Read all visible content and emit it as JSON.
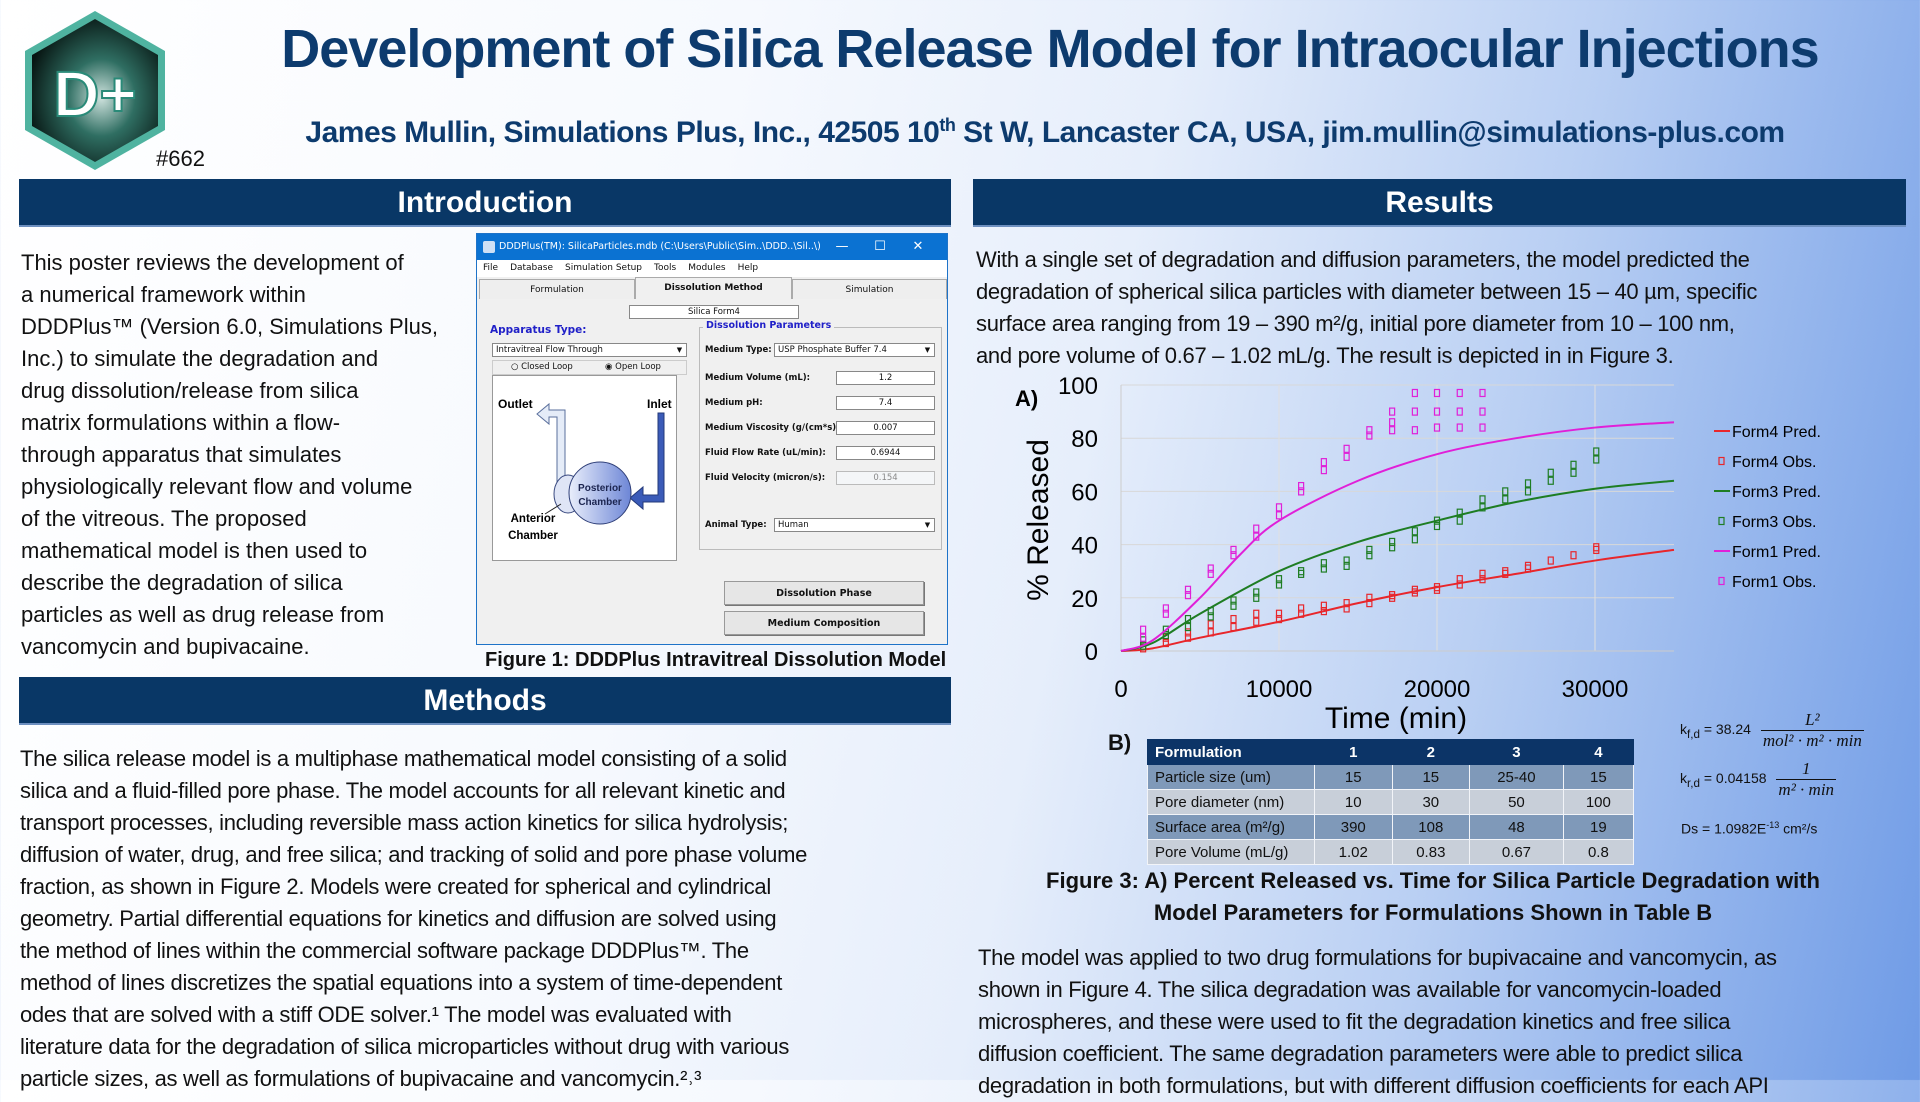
{
  "header": {
    "title": "Development of Silica Release Model for Intraocular Injections",
    "author_pre": "James Mullin, Simulations Plus, Inc., 42505 10",
    "author_sup": "th",
    "author_post": " St W, Lancaster CA, USA, jim.mullin@simulations-plus.com",
    "poster_number": "#662",
    "logo_text": "D+"
  },
  "introduction": {
    "heading": "Introduction",
    "lines": [
      "This poster reviews the development of",
      "a numerical framework within",
      "DDDPlus™ (Version 6.0, Simulations Plus,",
      "Inc.) to simulate the degradation and",
      "drug dissolution/release from silica",
      "matrix formulations within a flow-",
      "through apparatus that simulates",
      "physiologically relevant flow and volume",
      "of the vitreous.  The proposed",
      "mathematical model is then used to",
      "describe the degradation of silica",
      "particles as well as drug release from",
      "vancomycin and bupivacaine."
    ],
    "figure_caption": "Figure 1:  DDDPlus Intravitreal Dissolution Model"
  },
  "dialog": {
    "title": "DDDPlus(TM): SilicaParticles.mdb (C:\\Users\\Public\\Sim..\\DDD..\\Sil..\\)",
    "window_controls": [
      "—",
      "☐",
      "✕"
    ],
    "menu": [
      "File",
      "Database",
      "Simulation Setup",
      "Tools",
      "Modules",
      "Help"
    ],
    "tabs": [
      "Formulation",
      "Dissolution Method",
      "Simulation"
    ],
    "active_tab": "Dissolution Method",
    "formulation_name": "Silica Form4",
    "apparatus_label": "Apparatus Type:",
    "apparatus_value": "Intravitreal Flow Through",
    "radio_closed": "Closed Loop",
    "radio_open": "Open Loop",
    "radio_selected": "Open Loop",
    "diagram": {
      "outlet": "Outlet",
      "inlet": "Inlet",
      "posterior1": "Posterior",
      "posterior2": "Chamber",
      "anterior1": "Anterior",
      "anterior2": "Chamber"
    },
    "params_title": "Dissolution Parameters",
    "medium_type_label": "Medium Type:",
    "medium_type_value": "USP Phosphate Buffer 7.4",
    "medium_volume_label": "Medium Volume (mL):",
    "medium_volume_value": "1.2",
    "medium_ph_label": "Medium pH:",
    "medium_ph_value": "7.4",
    "viscosity_label": "Medium Viscosity (g/(cm*s)):",
    "viscosity_value": "0.007",
    "flow_rate_label": "Fluid Flow Rate (uL/min):",
    "flow_rate_value": "0.6944",
    "velocity_label": "Fluid Velocity (micron/s):",
    "velocity_value": "0.154",
    "animal_label": "Animal Type:",
    "animal_value": "Human",
    "btn_dissolution_phase": "Dissolution Phase",
    "btn_medium_composition": "Medium Composition"
  },
  "methods": {
    "heading": "Methods",
    "lines": [
      "The silica release model is a multiphase mathematical model consisting of a solid",
      "silica and a fluid-filled pore phase.  The model accounts for all relevant kinetic and",
      "transport processes, including reversible mass action kinetics for silica hydrolysis;",
      "diffusion of water, drug, and free silica; and tracking of solid and pore phase volume",
      "fraction, as shown in Figure 2.  Models were created for spherical and cylindrical",
      "geometry.  Partial differential equations for kinetics and diffusion are solved using",
      "the method of lines within the commercial software package DDDPlus™.  The",
      "method of lines discretizes the spatial equations into a system of time-dependent",
      "odes that are solved with a stiff ODE solver.¹  The model was evaluated with",
      "literature data for the degradation of silica microparticles without drug with various",
      "particle sizes, as well as formulations of bupivacaine and vancomycin.²˒³"
    ]
  },
  "results": {
    "heading": "Results",
    "lines": [
      "With a single set of degradation and diffusion parameters, the model predicted the",
      "degradation of spherical silica particles with diameter between 15 – 40 µm, specific",
      "surface area ranging from 19 – 390 m²/g, initial pore diameter from 10 –  100 nm,",
      "and pore volume of 0.67 – 1.02 mL/g.  The result is depicted in in Figure 3."
    ],
    "panel_a": "A)",
    "panel_b": "B)",
    "figure_caption_1": "Figure 3:  A) Percent Released vs. Time for Silica Particle Degradation with",
    "figure_caption_2": "Model Parameters for Formulations Shown in Table B",
    "lines2": [
      "The model was applied to two drug formulations for bupivacaine and vancomycin, as",
      "shown in Figure 4.  The silica degradation was available for vancomycin-loaded",
      "microspheres, and these were used to fit the degradation kinetics and free silica",
      "diffusion coefficient.  The same degradation parameters were able to predict silica",
      "degradation in both formulations, but with different diffusion coefficients for each API"
    ],
    "table": {
      "header": [
        "Formulation",
        "1",
        "2",
        "3",
        "4"
      ],
      "rows": [
        [
          "Particle size (um)",
          "15",
          "15",
          "25-40",
          "15"
        ],
        [
          "Pore diameter (nm)",
          "10",
          "30",
          "50",
          "100"
        ],
        [
          "Surface area (m²/g)",
          "390",
          "108",
          "48",
          "19"
        ],
        [
          "Pore Volume (mL/g)",
          "1.02",
          "0.83",
          "0.67",
          "0.8"
        ]
      ]
    },
    "equations": {
      "kfd_label": "k",
      "kfd_sub": "f,d",
      "kfd_value": "= 38.24",
      "kfd_num": "L²",
      "kfd_den": "mol² · m² · min",
      "krd_label": "k",
      "krd_sub": "r,d",
      "krd_value": "= 0.04158",
      "krd_num": "1",
      "krd_den": "m² · min",
      "ds_pre": "Ds = 1.0982E",
      "ds_exp": "-13",
      "ds_post": " cm²/s"
    }
  },
  "chart_data": {
    "type": "scatter",
    "xlabel": "Time (min)",
    "ylabel": "% Released",
    "xlim": [
      0,
      35000
    ],
    "ylim": [
      0,
      100
    ],
    "xticks": [
      0,
      10000,
      20000,
      30000
    ],
    "yticks": [
      0,
      20,
      40,
      60,
      80,
      100
    ],
    "grid": true,
    "legend_position": "right",
    "series": [
      {
        "name": "Form4 Pred.",
        "kind": "line",
        "color": "#e8262b",
        "points": [
          [
            0,
            0
          ],
          [
            2000,
            1
          ],
          [
            5000,
            5
          ],
          [
            10000,
            11
          ],
          [
            15000,
            18
          ],
          [
            20000,
            24
          ],
          [
            25000,
            29
          ],
          [
            30000,
            34
          ],
          [
            35000,
            38
          ]
        ]
      },
      {
        "name": "Form4 Obs.",
        "kind": "marker",
        "color": "#e8262b",
        "points": [
          [
            1400,
            1
          ],
          [
            1400,
            2
          ],
          [
            2840,
            3
          ],
          [
            2840,
            5
          ],
          [
            4240,
            5
          ],
          [
            4240,
            7
          ],
          [
            5680,
            7
          ],
          [
            5680,
            10
          ],
          [
            7120,
            9
          ],
          [
            7120,
            12
          ],
          [
            8560,
            11
          ],
          [
            8560,
            14
          ],
          [
            10000,
            12
          ],
          [
            10000,
            14
          ],
          [
            11400,
            14
          ],
          [
            11400,
            16
          ],
          [
            12840,
            15
          ],
          [
            12840,
            17
          ],
          [
            14280,
            16
          ],
          [
            14280,
            18
          ],
          [
            15720,
            18
          ],
          [
            15720,
            20
          ],
          [
            17160,
            20
          ],
          [
            17160,
            21
          ],
          [
            18600,
            22
          ],
          [
            18600,
            23
          ],
          [
            20000,
            23
          ],
          [
            20000,
            24
          ],
          [
            21440,
            25
          ],
          [
            21440,
            27
          ],
          [
            22880,
            27
          ],
          [
            22880,
            29
          ],
          [
            24320,
            29
          ],
          [
            24320,
            30
          ],
          [
            25760,
            31
          ],
          [
            25760,
            32
          ],
          [
            27200,
            34
          ],
          [
            28640,
            36
          ],
          [
            30080,
            38
          ],
          [
            30080,
            39
          ]
        ]
      },
      {
        "name": "Form3 Pred.",
        "kind": "line",
        "color": "#1e7d23",
        "points": [
          [
            0,
            0
          ],
          [
            2000,
            3
          ],
          [
            5000,
            14
          ],
          [
            10000,
            30
          ],
          [
            15000,
            41
          ],
          [
            20000,
            49
          ],
          [
            25000,
            56
          ],
          [
            30000,
            61
          ],
          [
            35000,
            64
          ]
        ]
      },
      {
        "name": "Form3 Obs.",
        "kind": "marker",
        "color": "#1e7d23",
        "points": [
          [
            1400,
            2
          ],
          [
            1400,
            4
          ],
          [
            2840,
            6
          ],
          [
            2840,
            8
          ],
          [
            4240,
            9
          ],
          [
            4240,
            12
          ],
          [
            5680,
            13
          ],
          [
            5680,
            15
          ],
          [
            7120,
            17
          ],
          [
            7120,
            19
          ],
          [
            8560,
            20
          ],
          [
            8560,
            22
          ],
          [
            10000,
            25
          ],
          [
            10000,
            27
          ],
          [
            11400,
            29
          ],
          [
            11400,
            30
          ],
          [
            12840,
            31
          ],
          [
            12840,
            33
          ],
          [
            14280,
            32
          ],
          [
            14280,
            34
          ],
          [
            15720,
            36
          ],
          [
            15720,
            38
          ],
          [
            17160,
            39
          ],
          [
            17160,
            41
          ],
          [
            18600,
            42
          ],
          [
            18600,
            45
          ],
          [
            20000,
            47
          ],
          [
            20000,
            49
          ],
          [
            21440,
            49
          ],
          [
            21440,
            52
          ],
          [
            22880,
            54
          ],
          [
            22880,
            57
          ],
          [
            24320,
            57
          ],
          [
            24320,
            60
          ],
          [
            25760,
            60
          ],
          [
            25760,
            63
          ],
          [
            27200,
            64
          ],
          [
            27200,
            67
          ],
          [
            28640,
            67
          ],
          [
            28640,
            70
          ],
          [
            30080,
            72
          ],
          [
            30080,
            75
          ]
        ]
      },
      {
        "name": "Form1 Pred.",
        "kind": "line",
        "color": "#e020d8",
        "points": [
          [
            0,
            0
          ],
          [
            2000,
            4
          ],
          [
            5000,
            20
          ],
          [
            7500,
            36
          ],
          [
            10000,
            49
          ],
          [
            15000,
            64
          ],
          [
            20000,
            74
          ],
          [
            25000,
            80
          ],
          [
            30000,
            84
          ],
          [
            35000,
            86
          ]
        ]
      },
      {
        "name": "Form1 Obs.",
        "kind": "marker",
        "color": "#e020d8",
        "points": [
          [
            1400,
            5
          ],
          [
            1400,
            8
          ],
          [
            2840,
            14
          ],
          [
            2840,
            16
          ],
          [
            4240,
            21
          ],
          [
            4240,
            23
          ],
          [
            5680,
            29
          ],
          [
            5680,
            31
          ],
          [
            7120,
            36
          ],
          [
            7120,
            38
          ],
          [
            8560,
            43
          ],
          [
            8560,
            46
          ],
          [
            10000,
            51
          ],
          [
            10000,
            54
          ],
          [
            11400,
            60
          ],
          [
            11400,
            62
          ],
          [
            12840,
            68
          ],
          [
            12840,
            71
          ],
          [
            14280,
            73
          ],
          [
            14280,
            76
          ],
          [
            15720,
            81
          ],
          [
            15720,
            83
          ],
          [
            17160,
            83
          ],
          [
            17160,
            86
          ],
          [
            17160,
            90
          ],
          [
            18600,
            83
          ],
          [
            18600,
            90
          ],
          [
            18600,
            97
          ],
          [
            20000,
            84
          ],
          [
            20000,
            90
          ],
          [
            20000,
            97
          ],
          [
            21440,
            84
          ],
          [
            21440,
            90
          ],
          [
            21440,
            97
          ],
          [
            22880,
            84
          ],
          [
            22880,
            90
          ],
          [
            22880,
            97
          ]
        ]
      }
    ]
  }
}
